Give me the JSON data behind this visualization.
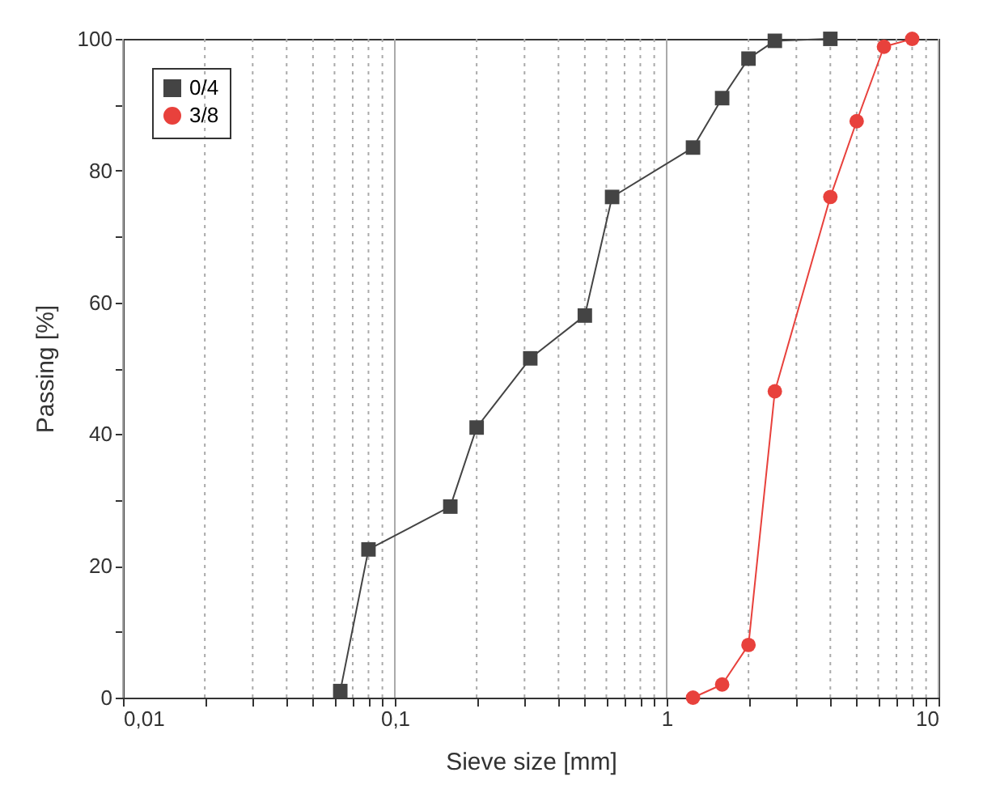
{
  "chart_data": {
    "type": "line",
    "xlabel": "Sieve size [mm]",
    "ylabel": "Passing [%]",
    "log": "x",
    "grid": "x",
    "legend": "top left",
    "xlim": [
      0.01,
      10
    ],
    "ylim": [
      0,
      100
    ],
    "xticks": [
      {
        "value": 0.01,
        "label": "0,01"
      },
      {
        "value": 0.02,
        "label": null
      },
      {
        "value": 0.03,
        "label": null
      },
      {
        "value": 0.04,
        "label": null
      },
      {
        "value": 0.05,
        "label": null
      },
      {
        "value": 0.06,
        "label": null
      },
      {
        "value": 0.07,
        "label": null
      },
      {
        "value": 0.08,
        "label": null
      },
      {
        "value": 0.09,
        "label": null
      },
      {
        "value": 0.1,
        "label": "0,1"
      },
      {
        "value": 0.2,
        "label": null
      },
      {
        "value": 0.3,
        "label": null
      },
      {
        "value": 0.4,
        "label": null
      },
      {
        "value": 0.5,
        "label": null
      },
      {
        "value": 0.6,
        "label": null
      },
      {
        "value": 0.7,
        "label": null
      },
      {
        "value": 0.8,
        "label": null
      },
      {
        "value": 0.9,
        "label": null
      },
      1,
      {
        "value": 2,
        "label": null
      },
      {
        "value": 3,
        "label": null
      },
      {
        "value": 4,
        "label": null
      },
      {
        "value": 5,
        "label": null
      },
      {
        "value": 6,
        "label": null
      },
      {
        "value": 7,
        "label": null
      },
      {
        "value": 8,
        "label": null
      },
      {
        "value": 9,
        "label": null
      },
      10
    ],
    "yticks": [
      0,
      {
        "value": 10,
        "label": null
      },
      20,
      {
        "value": 30,
        "label": null
      },
      40,
      {
        "value": 50,
        "label": null
      },
      60,
      {
        "value": 70,
        "label": null
      },
      80,
      {
        "value": 90,
        "label": null
      },
      100
    ],
    "series": [
      {
        "name": "0/4",
        "color": "#444444",
        "marker": "square",
        "x": [
          0.063,
          0.08,
          0.16,
          0.2,
          0.315,
          0.5,
          0.63,
          1.25,
          1.6,
          2,
          2.5,
          4
        ],
        "values": [
          1,
          22.5,
          29,
          41,
          51.5,
          58,
          76,
          83.5,
          91,
          97,
          99.7,
          100
        ]
      },
      {
        "name": "3/8",
        "color": "#e8413c",
        "marker": "circle",
        "x": [
          1.25,
          1.6,
          2,
          2.5,
          4,
          5,
          6.3,
          8
        ],
        "values": [
          0,
          2,
          8,
          46.5,
          76,
          87.5,
          98.8,
          100
        ]
      }
    ]
  }
}
